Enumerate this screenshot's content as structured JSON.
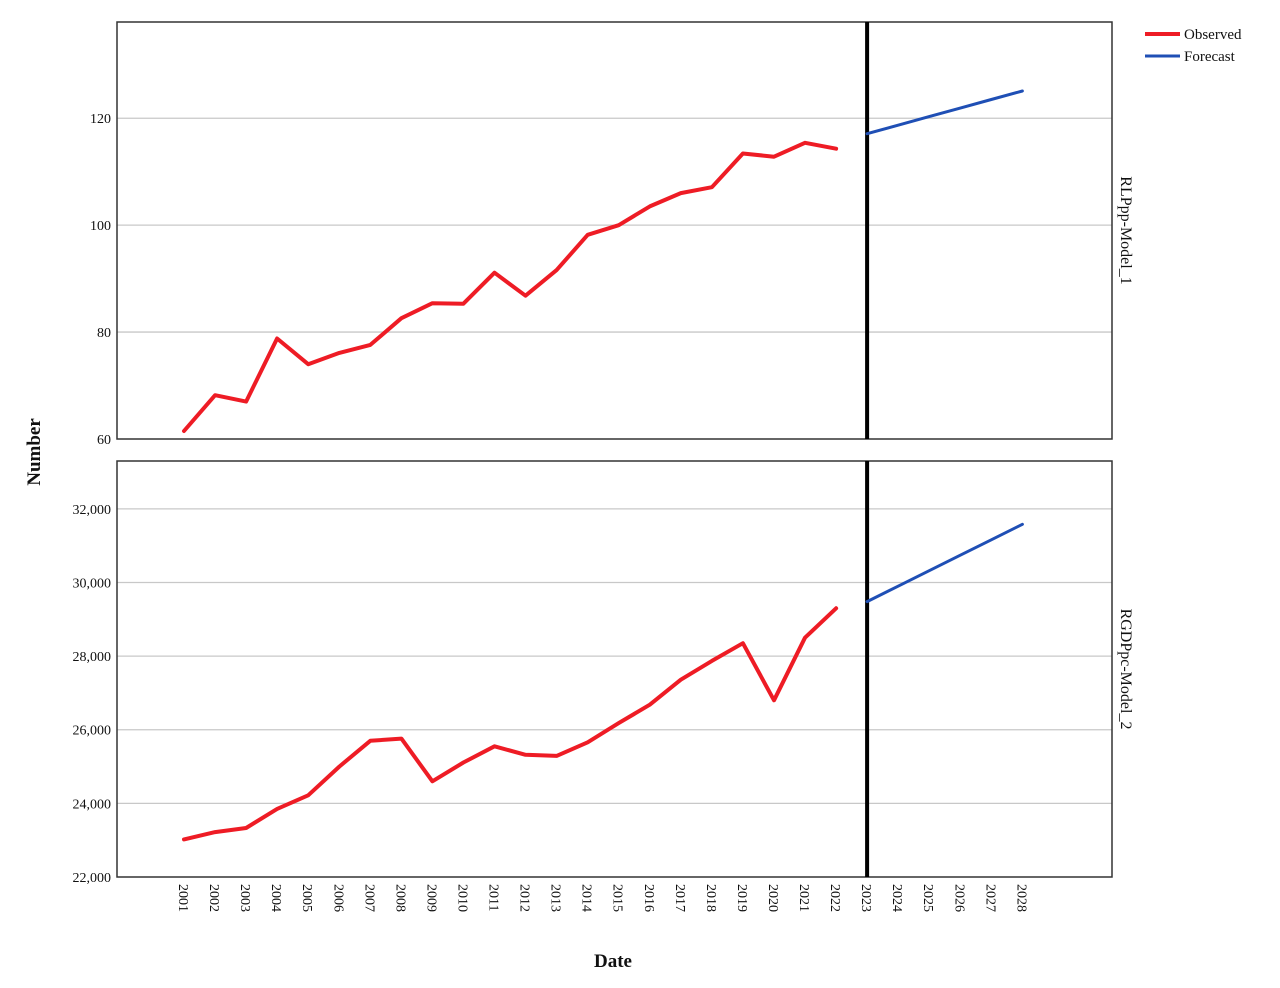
{
  "chart_data": {
    "type": "line",
    "xlabel": "Date",
    "ylabel": "Number",
    "x_ticks": [
      "2001",
      "2002",
      "2003",
      "2004",
      "2005",
      "2006",
      "2007",
      "2008",
      "2009",
      "2010",
      "2011",
      "2012",
      "2013",
      "2014",
      "2015",
      "2016",
      "2017",
      "2018",
      "2019",
      "2020",
      "2021",
      "2022",
      "2023",
      "2024",
      "2025",
      "2026",
      "2027",
      "2028"
    ],
    "reference_line_x": "2023",
    "legend": {
      "placement": "top-right",
      "entries": [
        {
          "name": "Observed",
          "color": "#ee1c25"
        },
        {
          "name": "Forecast",
          "color": "#1f4fb5"
        }
      ]
    },
    "grid": "horizontal",
    "panels": [
      {
        "label": "RLPpp-Model_1",
        "ylim": [
          60,
          138
        ],
        "y_ticks": [
          {
            "value": 60,
            "label": "60"
          },
          {
            "value": 80,
            "label": "80"
          },
          {
            "value": 100,
            "label": "100"
          },
          {
            "value": 120,
            "label": "120"
          }
        ],
        "series": [
          {
            "name": "Observed",
            "color": "#ee1c25",
            "x": [
              "2001",
              "2002",
              "2003",
              "2004",
              "2005",
              "2006",
              "2007",
              "2008",
              "2009",
              "2010",
              "2011",
              "2012",
              "2013",
              "2014",
              "2015",
              "2016",
              "2017",
              "2018",
              "2019",
              "2020",
              "2021",
              "2022"
            ],
            "values": [
              61.5,
              68.2,
              67.0,
              78.8,
              74.0,
              76.1,
              77.6,
              82.6,
              85.4,
              85.3,
              91.1,
              86.8,
              91.6,
              98.2,
              100.0,
              103.5,
              106.0,
              107.1,
              113.4,
              112.8,
              115.4,
              114.3
            ]
          },
          {
            "name": "Forecast",
            "color": "#1f4fb5",
            "x": [
              "2023",
              "2024",
              "2025",
              "2026",
              "2027",
              "2028"
            ],
            "values": [
              117.1,
              118.7,
              120.3,
              121.9,
              123.5,
              125.1
            ]
          }
        ]
      },
      {
        "label": "RGDPpc-Model_2",
        "ylim": [
          22000,
          33300
        ],
        "y_ticks": [
          {
            "value": 22000,
            "label": "22,000"
          },
          {
            "value": 24000,
            "label": "24,000"
          },
          {
            "value": 26000,
            "label": "26,000"
          },
          {
            "value": 28000,
            "label": "28,000"
          },
          {
            "value": 30000,
            "label": "30,000"
          },
          {
            "value": 32000,
            "label": "32,000"
          }
        ],
        "series": [
          {
            "name": "Observed",
            "color": "#ee1c25",
            "x": [
              "2001",
              "2002",
              "2003",
              "2004",
              "2005",
              "2006",
              "2007",
              "2008",
              "2009",
              "2010",
              "2011",
              "2012",
              "2013",
              "2014",
              "2015",
              "2016",
              "2017",
              "2018",
              "2019",
              "2020",
              "2021",
              "2022"
            ],
            "values": [
              23020,
              23220,
              23330,
              23850,
              24220,
              25000,
              25700,
              25760,
              24600,
              25110,
              25550,
              25320,
              25290,
              25660,
              26180,
              26680,
              27360,
              27870,
              28350,
              26800,
              28500,
              29300
            ]
          },
          {
            "name": "Forecast",
            "color": "#1f4fb5",
            "x": [
              "2023",
              "2024",
              "2025",
              "2026",
              "2027",
              "2028"
            ],
            "values": [
              29480,
              29900,
              30320,
              30740,
              31160,
              31580
            ]
          }
        ]
      }
    ]
  }
}
